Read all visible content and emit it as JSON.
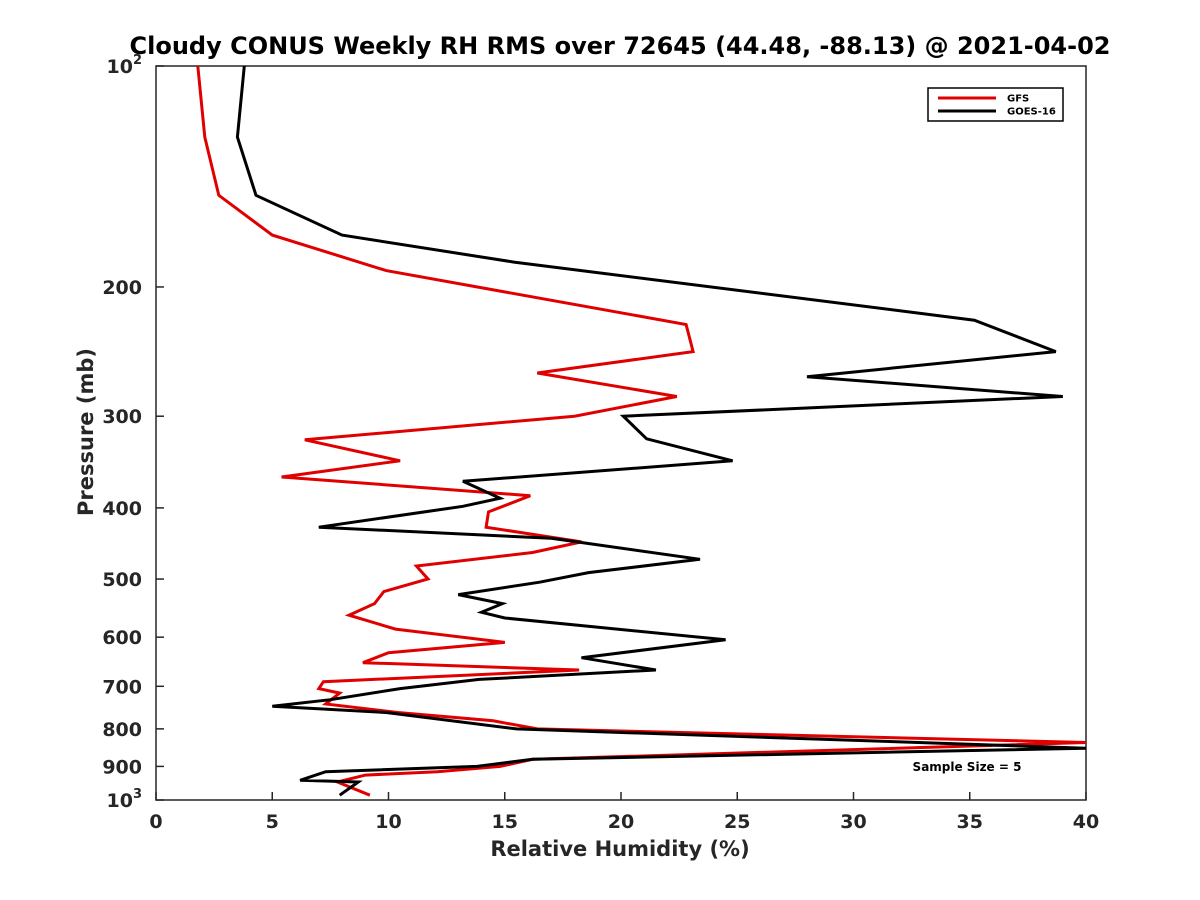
{
  "chart_data": {
    "type": "line",
    "title": "Cloudy CONUS Weekly RH RMS over 72645 (44.48, -88.13) @ 2021-04-02",
    "xlabel": "Relative Humidity (%)",
    "ylabel": "Pressure (mb)",
    "xlim": [
      0,
      40
    ],
    "ylim": [
      100,
      1000
    ],
    "y_scale": "log",
    "y_reversed": true,
    "grid": false,
    "legend_position": "top-right",
    "x_ticks": [
      "0",
      "5",
      "10",
      "15",
      "20",
      "25",
      "30",
      "35",
      "40"
    ],
    "y_ticks": [
      {
        "value": 100,
        "base": "10",
        "exp": "2"
      },
      {
        "value": 200,
        "label": "200"
      },
      {
        "value": 300,
        "label": "300"
      },
      {
        "value": 400,
        "label": "400"
      },
      {
        "value": 500,
        "label": "500"
      },
      {
        "value": 600,
        "label": "600"
      },
      {
        "value": 700,
        "label": "700"
      },
      {
        "value": 800,
        "label": "800"
      },
      {
        "value": 900,
        "label": "900"
      },
      {
        "value": 1000,
        "base": "10",
        "exp": "3"
      }
    ],
    "annotation": "Sample Size = 5",
    "series": [
      {
        "name": "GFS",
        "color": "#e00000",
        "points": [
          [
            1.8,
            100
          ],
          [
            2.1,
            125
          ],
          [
            2.7,
            150
          ],
          [
            5.0,
            170
          ],
          [
            9.9,
            190
          ],
          [
            22.8,
            225
          ],
          [
            23.1,
            245
          ],
          [
            16.4,
            262
          ],
          [
            22.4,
            282
          ],
          [
            18.0,
            300
          ],
          [
            6.4,
            323
          ],
          [
            10.5,
            345
          ],
          [
            5.4,
            363
          ],
          [
            16.1,
            385
          ],
          [
            14.3,
            405
          ],
          [
            14.2,
            425
          ],
          [
            18.3,
            445
          ],
          [
            16.2,
            460
          ],
          [
            11.2,
            480
          ],
          [
            11.7,
            500
          ],
          [
            9.8,
            520
          ],
          [
            9.4,
            540
          ],
          [
            8.3,
            560
          ],
          [
            10.3,
            585
          ],
          [
            15.0,
            610
          ],
          [
            10.0,
            630
          ],
          [
            8.9,
            650
          ],
          [
            18.2,
            665
          ],
          [
            7.2,
            690
          ],
          [
            7.0,
            705
          ],
          [
            7.9,
            715
          ],
          [
            7.3,
            740
          ],
          [
            10.4,
            760
          ],
          [
            14.5,
            780
          ],
          [
            16.4,
            800
          ],
          [
            40.0,
            835
          ],
          [
            16.2,
            880
          ],
          [
            14.8,
            900
          ],
          [
            12.1,
            915
          ],
          [
            9.0,
            925
          ],
          [
            7.8,
            945
          ],
          [
            9.2,
            985
          ]
        ]
      },
      {
        "name": "GOES-16",
        "color": "#000000",
        "points": [
          [
            3.8,
            100
          ],
          [
            3.5,
            125
          ],
          [
            4.3,
            150
          ],
          [
            8.0,
            170
          ],
          [
            15.4,
            185
          ],
          [
            35.2,
            222
          ],
          [
            38.7,
            245
          ],
          [
            28.0,
            265
          ],
          [
            39.0,
            282
          ],
          [
            20.1,
            300
          ],
          [
            21.1,
            322
          ],
          [
            24.8,
            345
          ],
          [
            13.2,
            368
          ],
          [
            14.8,
            388
          ],
          [
            13.2,
            398
          ],
          [
            7.0,
            425
          ],
          [
            17.0,
            440
          ],
          [
            23.4,
            470
          ],
          [
            18.6,
            490
          ],
          [
            16.5,
            505
          ],
          [
            13.0,
            525
          ],
          [
            14.9,
            540
          ],
          [
            14.0,
            555
          ],
          [
            15.0,
            565
          ],
          [
            24.5,
            605
          ],
          [
            18.3,
            640
          ],
          [
            21.5,
            665
          ],
          [
            13.9,
            685
          ],
          [
            10.5,
            705
          ],
          [
            7.5,
            730
          ],
          [
            5.0,
            745
          ],
          [
            9.9,
            760
          ],
          [
            15.5,
            800
          ],
          [
            40.0,
            850
          ],
          [
            16.2,
            880
          ],
          [
            13.8,
            900
          ],
          [
            7.3,
            915
          ],
          [
            6.2,
            940
          ],
          [
            8.7,
            945
          ],
          [
            7.9,
            985
          ]
        ]
      }
    ]
  }
}
